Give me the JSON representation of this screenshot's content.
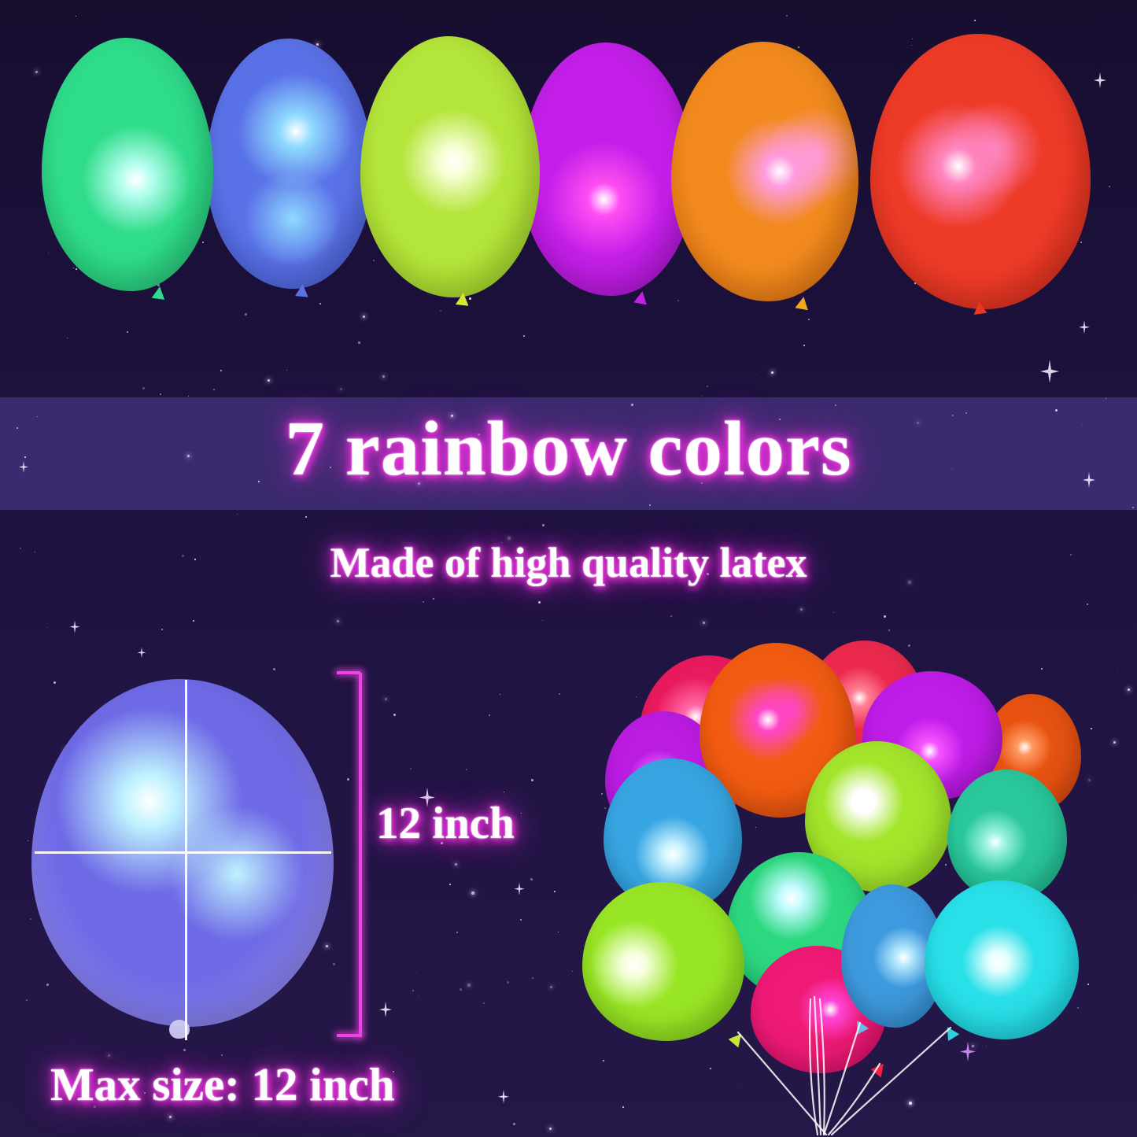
{
  "canvas": {
    "background_top": "#170e30",
    "background_mid": "#1e1240",
    "background_bottom": "#251748",
    "band_color": "#3b2a6e",
    "star_color": "#e6ddf6",
    "text_color": "#ffffff",
    "glow_color": "#e531d9"
  },
  "headline": {
    "text": "7 rainbow colors"
  },
  "subheadline": {
    "text": "Made of high quality latex"
  },
  "size_demo": {
    "label": "12 inch",
    "caption": "Max size: 12 inch",
    "balloon": {
      "name": "blue-violet",
      "body": "#6f6ae6",
      "edge": "#a9a2f0",
      "highlight": "#bef2ff",
      "knot": "#cfcaf4"
    },
    "measure_line_color": "#ffffff",
    "bracket_color": "#ef42e4"
  },
  "top_row": {
    "balloons": [
      {
        "name": "green",
        "body": "#2fdc8a",
        "edge": "#1fae66",
        "highlight": "#b6fff0"
      },
      {
        "name": "blue",
        "body": "#5a72e8",
        "edge": "#4152c2",
        "highlight": "#8fd9ff"
      },
      {
        "name": "lime-green",
        "body": "#b4e53a",
        "edge": "#90c01e",
        "highlight": "#f6ffd2",
        "knot": "#d6e830"
      },
      {
        "name": "magenta",
        "body": "#c31fe8",
        "edge": "#9a0fbc",
        "highlight": "#ff4df4"
      },
      {
        "name": "orange",
        "body": "#f28a1e",
        "edge": "#d2650c",
        "highlight": "#ff9ce0",
        "knot": "#f0a81c"
      },
      {
        "name": "red",
        "body": "#ee3b28",
        "edge": "#c62616",
        "highlight": "#ff86c2",
        "knot": "#e83820"
      }
    ]
  },
  "bunch": {
    "string_color": "#ffffff",
    "balloons": [
      {
        "name": "pink-back",
        "body": "#ea1a5e",
        "edge": "#bc0a46",
        "highlight": "#ff6aa6"
      },
      {
        "name": "red-back",
        "body": "#ec2a4e",
        "edge": "#c01534",
        "highlight": "#ff8096"
      },
      {
        "name": "purple-left",
        "body": "#bb1ce2",
        "edge": "#9212b8",
        "highlight": "#e86aff"
      },
      {
        "name": "orange-red-right",
        "body": "#e85312",
        "edge": "#bf3c0a",
        "highlight": "#ff9a60"
      },
      {
        "name": "orange-big",
        "body": "#f25c12",
        "edge": "#c94208",
        "highlight": "#ff46c8"
      },
      {
        "name": "purple-mid",
        "body": "#bf1ce8",
        "edge": "#9410ba",
        "highlight": "#f653ff"
      },
      {
        "name": "teal-blue",
        "body": "#38a6e2",
        "edge": "#1f7fb8",
        "highlight": "#c8f2ff"
      },
      {
        "name": "lime-mid",
        "body": "#a4e52c",
        "edge": "#7fbd14",
        "highlight": "#ffffff"
      },
      {
        "name": "teal-green",
        "body": "#2ac89c",
        "edge": "#149e78",
        "highlight": "#9ef4e2"
      },
      {
        "name": "green-front",
        "body": "#2cd87f",
        "edge": "#15ae60",
        "highlight": "#c2fbff"
      },
      {
        "name": "magenta-front",
        "body": "#ef1a76",
        "edge": "#c30a58",
        "highlight": "#ff45d6",
        "knot": "#f2203e"
      },
      {
        "name": "lime-front",
        "body": "#99e626",
        "edge": "#74bd10",
        "highlight": "#f4ffda",
        "knot": "#c6e838"
      },
      {
        "name": "blue-front",
        "body": "#3e9ade",
        "edge": "#2574b4",
        "highlight": "#b5e8ff",
        "knot": "#6ab8ea"
      },
      {
        "name": "cyan-front",
        "body": "#29dfe8",
        "edge": "#0fb4c2",
        "highlight": "#e2ffff",
        "knot": "#2ad2dc"
      }
    ]
  }
}
